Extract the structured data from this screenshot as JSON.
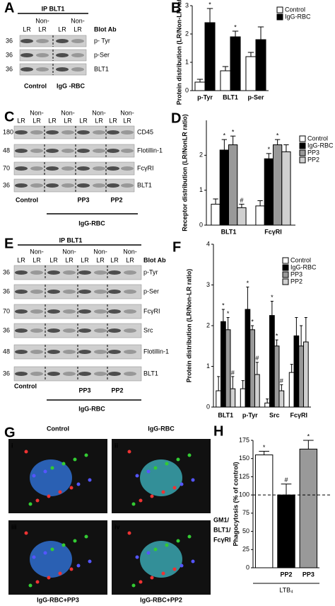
{
  "chart_data": [
    {
      "type": "bar",
      "panel": "B",
      "ylabel": "Protein distribution (LR/Non-LR ratio)",
      "categories": [
        "p-Tyr",
        "BLT1",
        "p-Ser"
      ],
      "ylim": [
        0,
        3
      ],
      "yticks": [
        0,
        1,
        2,
        3
      ],
      "series": [
        {
          "name": "Control",
          "color": "#ffffff",
          "values": [
            0.3,
            0.7,
            1.2
          ],
          "errors": [
            0.1,
            0.15,
            0.15
          ]
        },
        {
          "name": "IgG-RBC",
          "color": "#000000",
          "values": [
            2.4,
            1.9,
            1.8
          ],
          "errors": [
            0.5,
            0.2,
            0.45
          ],
          "significance": [
            "*",
            "*",
            null
          ]
        }
      ]
    },
    {
      "type": "bar",
      "panel": "D",
      "ylabel": "Receptor distribution (LR/NonLR ratio)",
      "categories": [
        "BLT1",
        "FcγRI"
      ],
      "ylim": [
        0,
        3
      ],
      "yticks": [
        0,
        1,
        2
      ],
      "series": [
        {
          "name": "Control",
          "color": "#ffffff",
          "values": [
            0.6,
            0.55
          ],
          "errors": [
            0.15,
            0.15
          ]
        },
        {
          "name": "IgG-RBC",
          "color": "#000000",
          "values": [
            2.15,
            1.9
          ],
          "errors": [
            0.3,
            0.15
          ],
          "significance": [
            "*",
            "*"
          ]
        },
        {
          "name": "PP3",
          "color": "#999999",
          "values": [
            2.3,
            2.3
          ],
          "errors": [
            0.25,
            0.15
          ],
          "significance": [
            "*",
            "*"
          ]
        },
        {
          "name": "PP2",
          "color": "#d0d0d0",
          "values": [
            0.5,
            2.1
          ],
          "errors": [
            0.1,
            0.2
          ],
          "significance": [
            "#",
            null
          ]
        }
      ]
    },
    {
      "type": "bar",
      "panel": "F",
      "ylabel": "Protein distribution (LR/Non-LR ratio)",
      "categories": [
        "BLT1",
        "p-Tyr",
        "Src",
        "FcγRI"
      ],
      "ylim": [
        0,
        4
      ],
      "yticks": [
        0,
        1,
        2,
        3,
        4
      ],
      "series": [
        {
          "name": "Control",
          "color": "#ffffff",
          "values": [
            0.4,
            0.45,
            0.1,
            0.85
          ],
          "errors": [
            0.35,
            0.2,
            0.1,
            0.2
          ]
        },
        {
          "name": "IgG-RBC",
          "color": "#000000",
          "values": [
            2.1,
            2.4,
            2.25,
            1.75
          ],
          "errors": [
            0.3,
            0.55,
            0.35,
            0.45
          ],
          "significance": [
            "*",
            "*",
            "*",
            null
          ]
        },
        {
          "name": "PP3",
          "color": "#999999",
          "values": [
            1.9,
            1.9,
            1.5,
            1.5
          ],
          "errors": [
            0.3,
            0.1,
            0.15,
            0.5
          ],
          "significance": [
            "*",
            "*",
            "*",
            null
          ]
        },
        {
          "name": "PP2",
          "color": "#d0d0d0",
          "values": [
            0.45,
            0.8,
            0.4,
            1.6
          ],
          "errors": [
            0.3,
            0.3,
            0.15,
            0.6
          ],
          "significance": [
            "#",
            "#",
            "#",
            null
          ]
        }
      ]
    },
    {
      "type": "bar",
      "panel": "H",
      "ylabel": "Phagocytosis (% of control)",
      "categories": [
        null,
        "PP2",
        "PP3"
      ],
      "ylim": [
        0,
        175
      ],
      "yticks": [
        0,
        25,
        50,
        75,
        100,
        125,
        150,
        175
      ],
      "values": [
        155,
        100,
        163
      ],
      "errors": [
        5,
        15,
        12
      ],
      "colors": [
        "#ffffff",
        "#000000",
        "#999999"
      ],
      "significance": [
        "*",
        "#",
        "*"
      ],
      "hline": 100,
      "group_label": "LTB₄"
    }
  ],
  "blots": [
    {
      "panel": "A",
      "header": "IP BLT1",
      "blot_ab": "Blot Ab",
      "lanes": [
        {
          "top": null,
          "label": "LR"
        },
        {
          "top": "Non-",
          "label": "LR"
        },
        {
          "top": null,
          "label": "LR"
        },
        {
          "top": "Non-",
          "label": "LR"
        }
      ],
      "rows": [
        {
          "mw": 36,
          "label": "p- Tyr"
        },
        {
          "mw": 36,
          "label": "p-Ser"
        },
        {
          "mw": 36,
          "label": "BLT1"
        }
      ],
      "bottom_labels": [
        "Control",
        "IgG -RBC"
      ]
    },
    {
      "panel": "C",
      "lanes": [
        {
          "top": null,
          "label": "LR"
        },
        {
          "top": "Non-",
          "label": "LR"
        },
        {
          "top": null,
          "label": "LR"
        },
        {
          "top": "Non-",
          "label": "LR"
        },
        {
          "top": null,
          "label": "LR"
        },
        {
          "top": "Non-",
          "label": "LR"
        },
        {
          "top": null,
          "label": "LR"
        },
        {
          "top": "Non-",
          "label": "LR"
        }
      ],
      "rows": [
        {
          "mw": 180,
          "label": "CD45"
        },
        {
          "mw": 48,
          "label": "Flotillin-1"
        },
        {
          "mw": 70,
          "label": "FcγRI"
        },
        {
          "mw": 36,
          "label": "BLT1"
        }
      ],
      "bottom_labels": [
        "Control",
        "PP3",
        "PP2",
        "IgG-RBC"
      ]
    },
    {
      "panel": "E",
      "header": "IP BLT1",
      "blot_ab": "Blot Ab",
      "lanes": [
        {
          "top": null,
          "label": "LR"
        },
        {
          "top": "Non-",
          "label": "LR"
        },
        {
          "top": null,
          "label": "LR"
        },
        {
          "top": "Non-",
          "label": "LR"
        },
        {
          "top": null,
          "label": "LR"
        },
        {
          "top": "Non-",
          "label": "LR"
        },
        {
          "top": null,
          "label": "LR"
        },
        {
          "top": "Non-",
          "label": "LR"
        }
      ],
      "rows": [
        {
          "mw": 36,
          "label": "p-Tyr"
        },
        {
          "mw": 36,
          "label": "p-Ser"
        },
        {
          "mw": 70,
          "label": "FcγRI"
        },
        {
          "mw": 36,
          "label": "Src"
        },
        {
          "mw": 48,
          "label": "Flotillin-1"
        },
        {
          "mw": 36,
          "label": "BLT1"
        }
      ],
      "bottom_labels": [
        "Control",
        "PP3",
        "PP2",
        "IgG-RBC"
      ]
    }
  ],
  "micrographs": {
    "panel": "G",
    "images": [
      {
        "numeral": "i",
        "label": "Control"
      },
      {
        "numeral": "ii",
        "label": "IgG-RBC"
      },
      {
        "numeral": "iii",
        "label": "IgG-RBC+PP3"
      },
      {
        "numeral": "iv",
        "label": "IgG-RBC+PP2"
      }
    ],
    "legend": [
      "GM1/",
      "BLT1/",
      "FcγRI"
    ]
  }
}
